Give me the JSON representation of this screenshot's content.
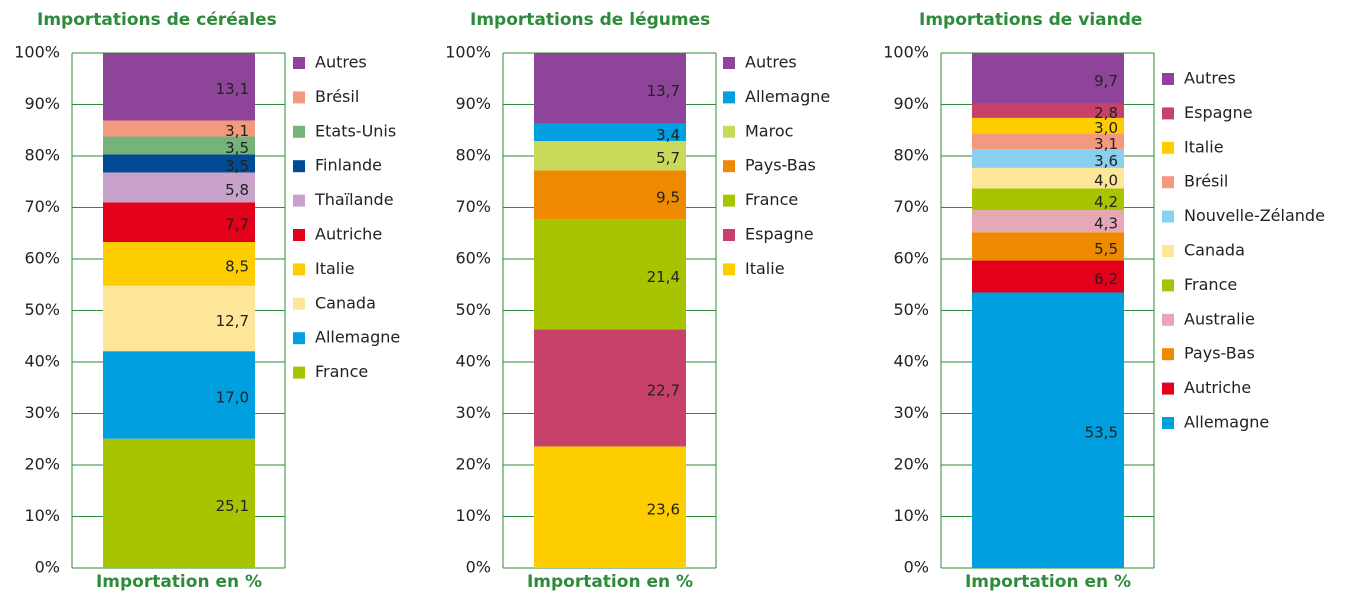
{
  "chart_data": [
    {
      "type": "stacked-bar",
      "title": "Importations de céréales",
      "y_label": "Importation en %",
      "ylim": [
        0,
        100
      ],
      "yticks": [
        {
          "value": 0,
          "label": "0%"
        },
        {
          "value": 10,
          "label": "10%"
        },
        {
          "value": 20,
          "label": "20%"
        },
        {
          "value": 30,
          "label": "30%"
        },
        {
          "value": 40,
          "label": "40%"
        },
        {
          "value": 50,
          "label": "50%"
        },
        {
          "value": 60,
          "label": "60%"
        },
        {
          "value": 70,
          "label": "70%"
        },
        {
          "value": 80,
          "label": "80%"
        },
        {
          "value": 90,
          "label": "90%"
        },
        {
          "value": 100,
          "label": "100%"
        }
      ],
      "series": [
        {
          "name": "France",
          "color": "#a8c400",
          "values": [
            25.1
          ],
          "value_labels": [
            "25,1"
          ]
        },
        {
          "name": "Allemagne",
          "color": "#009fe0",
          "values": [
            17.0
          ],
          "value_labels": [
            "17,0"
          ]
        },
        {
          "name": "Canada",
          "color": "#fde59a",
          "values": [
            12.7
          ],
          "value_labels": [
            "12,7"
          ]
        },
        {
          "name": "Italie",
          "color": "#fecd00",
          "values": [
            8.5
          ],
          "value_labels": [
            "8,5"
          ]
        },
        {
          "name": "Autriche",
          "color": "#e3001b",
          "values": [
            7.7
          ],
          "value_labels": [
            "7,7"
          ]
        },
        {
          "name": "Thaïlande",
          "color": "#c8a2cb",
          "values": [
            5.8
          ],
          "value_labels": [
            "5,8"
          ]
        },
        {
          "name": "Finlande",
          "color": "#004b93",
          "values": [
            3.5
          ],
          "value_labels": [
            "3,5"
          ]
        },
        {
          "name": "Etats-Unis",
          "color": "#76b37a",
          "values": [
            3.5
          ],
          "value_labels": [
            "3,5"
          ]
        },
        {
          "name": "Brésil",
          "color": "#f39a7e",
          "values": [
            3.1
          ],
          "value_labels": [
            "3,1"
          ]
        },
        {
          "name": "Autres",
          "color": "#8e4498",
          "values": [
            13.1
          ],
          "value_labels": [
            "13,1"
          ]
        }
      ]
    },
    {
      "type": "stacked-bar",
      "title": "Importations de légumes",
      "y_label": "Importation en %",
      "ylim": [
        0,
        100
      ],
      "yticks": [
        {
          "value": 0,
          "label": "0%"
        },
        {
          "value": 10,
          "label": "10%"
        },
        {
          "value": 20,
          "label": "20%"
        },
        {
          "value": 30,
          "label": "30%"
        },
        {
          "value": 40,
          "label": "40%"
        },
        {
          "value": 50,
          "label": "50%"
        },
        {
          "value": 60,
          "label": "60%"
        },
        {
          "value": 70,
          "label": "70%"
        },
        {
          "value": 80,
          "label": "80%"
        },
        {
          "value": 90,
          "label": "90%"
        },
        {
          "value": 100,
          "label": "100%"
        }
      ],
      "series": [
        {
          "name": "Italie",
          "color": "#fecd00",
          "values": [
            23.6
          ],
          "value_labels": [
            "23,6"
          ]
        },
        {
          "name": "Espagne",
          "color": "#c8416b",
          "values": [
            22.7
          ],
          "value_labels": [
            "22,7"
          ]
        },
        {
          "name": "France",
          "color": "#a8c400",
          "values": [
            21.4
          ],
          "value_labels": [
            "21,4"
          ]
        },
        {
          "name": "Pays-Bas",
          "color": "#ee8a00",
          "values": [
            9.5
          ],
          "value_labels": [
            "9,5"
          ]
        },
        {
          "name": "Maroc",
          "color": "#c9da5b",
          "values": [
            5.7
          ],
          "value_labels": [
            "5,7"
          ]
        },
        {
          "name": "Allemagne",
          "color": "#009fe0",
          "values": [
            3.4
          ],
          "value_labels": [
            "3,4"
          ]
        },
        {
          "name": "Autres",
          "color": "#8e4498",
          "values": [
            13.7
          ],
          "value_labels": [
            "13,7"
          ]
        }
      ]
    },
    {
      "type": "stacked-bar",
      "title": "Importations de viande",
      "y_label": "Importation en %",
      "ylim": [
        0,
        100
      ],
      "yticks": [
        {
          "value": 0,
          "label": "0%"
        },
        {
          "value": 10,
          "label": "10%"
        },
        {
          "value": 20,
          "label": "20%"
        },
        {
          "value": 30,
          "label": "30%"
        },
        {
          "value": 40,
          "label": "40%"
        },
        {
          "value": 50,
          "label": "50%"
        },
        {
          "value": 60,
          "label": "60%"
        },
        {
          "value": 70,
          "label": "70%"
        },
        {
          "value": 80,
          "label": "80%"
        },
        {
          "value": 90,
          "label": "90%"
        },
        {
          "value": 100,
          "label": "100%"
        }
      ],
      "series": [
        {
          "name": "Allemagne",
          "color": "#009fe0",
          "values": [
            53.5
          ],
          "value_labels": [
            "53,5"
          ]
        },
        {
          "name": "Autriche",
          "color": "#e3001b",
          "values": [
            6.2
          ],
          "value_labels": [
            "6,2"
          ]
        },
        {
          "name": "Pays-Bas",
          "color": "#ee8a00",
          "values": [
            5.5
          ],
          "value_labels": [
            "5,5"
          ]
        },
        {
          "name": "Australie",
          "color": "#e5a9b5",
          "values": [
            4.3
          ],
          "value_labels": [
            "4,3"
          ]
        },
        {
          "name": "France",
          "color": "#a8c400",
          "values": [
            4.2
          ],
          "value_labels": [
            "4,2"
          ]
        },
        {
          "name": "Canada",
          "color": "#fde59a",
          "values": [
            4.0
          ],
          "value_labels": [
            "4,0"
          ]
        },
        {
          "name": "Nouvelle-Zélande",
          "color": "#88d0ee",
          "values": [
            3.6
          ],
          "value_labels": [
            "3,6"
          ]
        },
        {
          "name": "Brésil",
          "color": "#f39a7e",
          "values": [
            3.1
          ],
          "value_labels": [
            "3,1"
          ]
        },
        {
          "name": "Italie",
          "color": "#fecd00",
          "values": [
            3.0
          ],
          "value_labels": [
            "3,0"
          ]
        },
        {
          "name": "Espagne",
          "color": "#c8416b",
          "values": [
            2.8
          ],
          "value_labels": [
            "2,8"
          ]
        },
        {
          "name": "Autres",
          "color": "#8e4498",
          "values": [
            9.7
          ],
          "value_labels": [
            "9,7"
          ]
        }
      ]
    }
  ]
}
